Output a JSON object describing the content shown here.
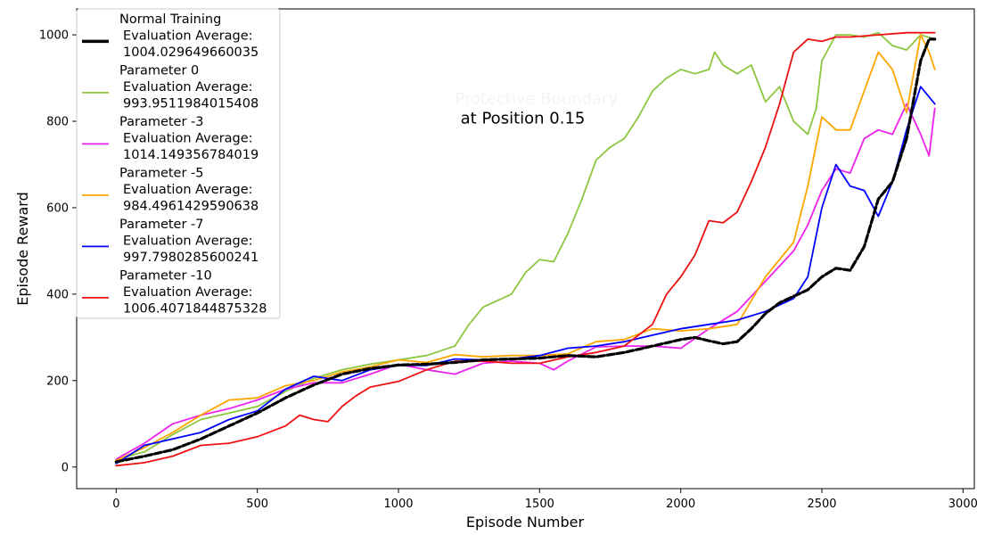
{
  "chart_data": {
    "type": "line",
    "title": "",
    "xlabel": "Episode Number",
    "ylabel": "Episode Reward",
    "xlim": [
      -140,
      3040
    ],
    "ylim": [
      -50,
      1060
    ],
    "xticks": [
      0,
      500,
      1000,
      1500,
      2000,
      2500,
      3000
    ],
    "yticks": [
      0,
      200,
      400,
      600,
      800,
      1000
    ],
    "grid": false,
    "legend_position": "upper-left",
    "annotations": [
      {
        "text": "Protective Boundary",
        "x": 1200,
        "y": 840,
        "color": "#f4f4f4"
      },
      {
        "text": "at Position 0.15",
        "x": 1220,
        "y": 795,
        "color": "#000000"
      }
    ],
    "series": [
      {
        "name": "Normal Training",
        "eval_label": "Evaluation Average:",
        "eval_value": "1004.029649660035",
        "color": "#000000",
        "dashed": true,
        "points": [
          [
            0,
            12
          ],
          [
            100,
            25
          ],
          [
            200,
            40
          ],
          [
            300,
            65
          ],
          [
            400,
            95
          ],
          [
            500,
            125
          ],
          [
            600,
            160
          ],
          [
            700,
            190
          ],
          [
            800,
            215
          ],
          [
            900,
            228
          ],
          [
            1000,
            236
          ],
          [
            1100,
            238
          ],
          [
            1200,
            242
          ],
          [
            1300,
            248
          ],
          [
            1400,
            250
          ],
          [
            1500,
            252
          ],
          [
            1600,
            258
          ],
          [
            1700,
            255
          ],
          [
            1800,
            265
          ],
          [
            1900,
            280
          ],
          [
            2000,
            295
          ],
          [
            2050,
            300
          ],
          [
            2100,
            292
          ],
          [
            2150,
            285
          ],
          [
            2200,
            290
          ],
          [
            2250,
            320
          ],
          [
            2300,
            355
          ],
          [
            2350,
            380
          ],
          [
            2400,
            395
          ],
          [
            2450,
            410
          ],
          [
            2500,
            440
          ],
          [
            2550,
            460
          ],
          [
            2600,
            455
          ],
          [
            2650,
            510
          ],
          [
            2700,
            620
          ],
          [
            2750,
            660
          ],
          [
            2800,
            760
          ],
          [
            2850,
            940
          ],
          [
            2880,
            990
          ],
          [
            2900,
            990
          ]
        ]
      },
      {
        "name": "Parameter 0",
        "eval_label": "Evaluation Average:",
        "eval_value": "993.9511984015408",
        "color": "#8dc63f",
        "dashed": false,
        "points": [
          [
            0,
            18
          ],
          [
            100,
            35
          ],
          [
            200,
            75
          ],
          [
            300,
            110
          ],
          [
            400,
            125
          ],
          [
            500,
            140
          ],
          [
            600,
            175
          ],
          [
            700,
            205
          ],
          [
            800,
            225
          ],
          [
            900,
            238
          ],
          [
            1000,
            248
          ],
          [
            1100,
            258
          ],
          [
            1200,
            280
          ],
          [
            1250,
            330
          ],
          [
            1300,
            370
          ],
          [
            1400,
            400
          ],
          [
            1450,
            450
          ],
          [
            1500,
            480
          ],
          [
            1550,
            475
          ],
          [
            1600,
            540
          ],
          [
            1650,
            620
          ],
          [
            1700,
            710
          ],
          [
            1750,
            740
          ],
          [
            1800,
            760
          ],
          [
            1850,
            810
          ],
          [
            1900,
            870
          ],
          [
            1950,
            900
          ],
          [
            2000,
            920
          ],
          [
            2050,
            910
          ],
          [
            2100,
            920
          ],
          [
            2120,
            960
          ],
          [
            2150,
            930
          ],
          [
            2200,
            910
          ],
          [
            2250,
            930
          ],
          [
            2300,
            845
          ],
          [
            2350,
            880
          ],
          [
            2400,
            800
          ],
          [
            2450,
            770
          ],
          [
            2480,
            830
          ],
          [
            2500,
            940
          ],
          [
            2550,
            1000
          ],
          [
            2600,
            1000
          ],
          [
            2650,
            995
          ],
          [
            2700,
            1005
          ],
          [
            2750,
            975
          ],
          [
            2800,
            965
          ],
          [
            2850,
            1000
          ],
          [
            2900,
            990
          ]
        ]
      },
      {
        "name": "Parameter -3",
        "eval_label": "Evaluation Average:",
        "eval_value": "1014.149356784019",
        "color": "#ee22ee",
        "dashed": false,
        "points": [
          [
            0,
            18
          ],
          [
            100,
            55
          ],
          [
            200,
            100
          ],
          [
            300,
            120
          ],
          [
            400,
            135
          ],
          [
            500,
            155
          ],
          [
            600,
            180
          ],
          [
            700,
            195
          ],
          [
            800,
            195
          ],
          [
            900,
            215
          ],
          [
            1000,
            238
          ],
          [
            1100,
            225
          ],
          [
            1200,
            215
          ],
          [
            1300,
            240
          ],
          [
            1400,
            245
          ],
          [
            1500,
            240
          ],
          [
            1550,
            225
          ],
          [
            1600,
            245
          ],
          [
            1700,
            278
          ],
          [
            1800,
            280
          ],
          [
            1900,
            280
          ],
          [
            2000,
            275
          ],
          [
            2100,
            320
          ],
          [
            2200,
            360
          ],
          [
            2300,
            430
          ],
          [
            2400,
            500
          ],
          [
            2450,
            560
          ],
          [
            2500,
            640
          ],
          [
            2550,
            690
          ],
          [
            2600,
            680
          ],
          [
            2650,
            760
          ],
          [
            2700,
            780
          ],
          [
            2750,
            770
          ],
          [
            2800,
            840
          ],
          [
            2850,
            770
          ],
          [
            2880,
            720
          ],
          [
            2900,
            830
          ]
        ]
      },
      {
        "name": "Parameter -5",
        "eval_label": "Evaluation Average:",
        "eval_value": "984.4961429590638",
        "color": "#ffa500",
        "dashed": false,
        "points": [
          [
            0,
            15
          ],
          [
            100,
            45
          ],
          [
            200,
            80
          ],
          [
            300,
            120
          ],
          [
            400,
            155
          ],
          [
            500,
            160
          ],
          [
            600,
            188
          ],
          [
            700,
            200
          ],
          [
            800,
            220
          ],
          [
            900,
            232
          ],
          [
            1000,
            248
          ],
          [
            1100,
            242
          ],
          [
            1200,
            260
          ],
          [
            1300,
            255
          ],
          [
            1400,
            258
          ],
          [
            1500,
            258
          ],
          [
            1600,
            262
          ],
          [
            1700,
            290
          ],
          [
            1800,
            295
          ],
          [
            1900,
            320
          ],
          [
            2000,
            315
          ],
          [
            2100,
            320
          ],
          [
            2200,
            330
          ],
          [
            2300,
            440
          ],
          [
            2400,
            520
          ],
          [
            2450,
            650
          ],
          [
            2500,
            810
          ],
          [
            2550,
            780
          ],
          [
            2600,
            780
          ],
          [
            2650,
            870
          ],
          [
            2700,
            960
          ],
          [
            2750,
            920
          ],
          [
            2800,
            820
          ],
          [
            2850,
            1000
          ],
          [
            2880,
            960
          ],
          [
            2900,
            920
          ]
        ]
      },
      {
        "name": "Parameter -7",
        "eval_label": "Evaluation Average:",
        "eval_value": "997.7980285600241",
        "color": "#0000ff",
        "dashed": false,
        "points": [
          [
            0,
            8
          ],
          [
            100,
            50
          ],
          [
            200,
            65
          ],
          [
            300,
            80
          ],
          [
            400,
            110
          ],
          [
            500,
            130
          ],
          [
            600,
            180
          ],
          [
            700,
            210
          ],
          [
            800,
            200
          ],
          [
            900,
            225
          ],
          [
            1000,
            235
          ],
          [
            1100,
            235
          ],
          [
            1200,
            250
          ],
          [
            1300,
            248
          ],
          [
            1400,
            250
          ],
          [
            1500,
            258
          ],
          [
            1600,
            275
          ],
          [
            1700,
            280
          ],
          [
            1800,
            290
          ],
          [
            1900,
            305
          ],
          [
            2000,
            320
          ],
          [
            2100,
            330
          ],
          [
            2200,
            340
          ],
          [
            2300,
            360
          ],
          [
            2400,
            390
          ],
          [
            2450,
            440
          ],
          [
            2500,
            600
          ],
          [
            2550,
            700
          ],
          [
            2600,
            650
          ],
          [
            2650,
            640
          ],
          [
            2700,
            580
          ],
          [
            2750,
            660
          ],
          [
            2800,
            780
          ],
          [
            2850,
            880
          ],
          [
            2900,
            840
          ]
        ]
      },
      {
        "name": "Parameter -10",
        "eval_label": "Evaluation Average:",
        "eval_value": "1006.4071844875328",
        "color": "#ee1111",
        "dashed": false,
        "points": [
          [
            0,
            3
          ],
          [
            100,
            10
          ],
          [
            200,
            25
          ],
          [
            300,
            50
          ],
          [
            400,
            55
          ],
          [
            500,
            70
          ],
          [
            600,
            95
          ],
          [
            650,
            120
          ],
          [
            700,
            110
          ],
          [
            750,
            105
          ],
          [
            800,
            140
          ],
          [
            850,
            165
          ],
          [
            900,
            185
          ],
          [
            1000,
            198
          ],
          [
            1100,
            225
          ],
          [
            1200,
            245
          ],
          [
            1300,
            245
          ],
          [
            1400,
            240
          ],
          [
            1500,
            240
          ],
          [
            1600,
            255
          ],
          [
            1700,
            265
          ],
          [
            1800,
            280
          ],
          [
            1900,
            330
          ],
          [
            1950,
            400
          ],
          [
            2000,
            440
          ],
          [
            2050,
            490
          ],
          [
            2100,
            570
          ],
          [
            2150,
            565
          ],
          [
            2200,
            590
          ],
          [
            2250,
            660
          ],
          [
            2300,
            740
          ],
          [
            2350,
            840
          ],
          [
            2400,
            960
          ],
          [
            2450,
            990
          ],
          [
            2500,
            985
          ],
          [
            2550,
            995
          ],
          [
            2600,
            995
          ],
          [
            2700,
            1000
          ],
          [
            2800,
            1005
          ],
          [
            2900,
            1005
          ]
        ]
      }
    ]
  }
}
